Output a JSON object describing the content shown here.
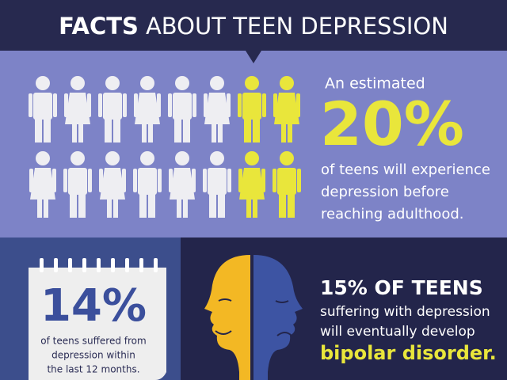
{
  "header": {
    "title_bold": "FACTS",
    "title_rest": "ABOUT TEEN DEPRESSION"
  },
  "stat_adulthood": {
    "lead": "An estimated",
    "figure": "20%",
    "lines": [
      "of teens will experience",
      "depression before",
      "reaching adulthood."
    ]
  },
  "stat_12_months": {
    "figure": "14%",
    "lines": [
      "of teens suffered from",
      "depression within",
      "the last 12 months."
    ]
  },
  "stat_bipolar": {
    "heading": "15% OF TEENS",
    "lines": [
      "suffering with depression",
      "will eventually develop"
    ],
    "highlight": "bipolar disorder."
  }
}
